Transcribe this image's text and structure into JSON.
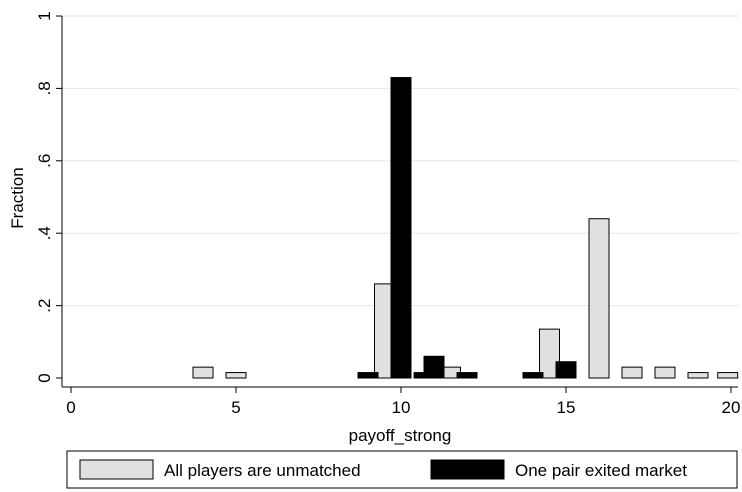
{
  "chart_data": {
    "type": "bar",
    "title": "",
    "xlabel": "payoff_strong",
    "ylabel": "Fraction",
    "xlim": [
      0,
      20
    ],
    "ylim": [
      0,
      1
    ],
    "xticks": [
      {
        "value": 0,
        "label": "0"
      },
      {
        "value": 5,
        "label": "5"
      },
      {
        "value": 10,
        "label": "10"
      },
      {
        "value": 15,
        "label": "15"
      },
      {
        "value": 20,
        "label": "20"
      }
    ],
    "yticks": [
      {
        "value": 0,
        "label": "0"
      },
      {
        "value": 0.2,
        "label": ".2"
      },
      {
        "value": 0.4,
        "label": ".4"
      },
      {
        "value": 0.6,
        "label": ".6"
      },
      {
        "value": 0.8,
        "label": ".8"
      },
      {
        "value": 1,
        "label": "1"
      }
    ],
    "grid": true,
    "legend_position": "bottom",
    "series": [
      {
        "name": "All players are unmatched",
        "color": "#e0e0e0",
        "points": [
          {
            "x": 4,
            "y": 0.03
          },
          {
            "x": 5,
            "y": 0.015
          },
          {
            "x": 9.5,
            "y": 0.26
          },
          {
            "x": 11.5,
            "y": 0.03
          },
          {
            "x": 14.5,
            "y": 0.135
          },
          {
            "x": 16,
            "y": 0.44
          },
          {
            "x": 17,
            "y": 0.03
          },
          {
            "x": 18,
            "y": 0.03
          },
          {
            "x": 19,
            "y": 0.015
          },
          {
            "x": 19.9,
            "y": 0.015
          }
        ]
      },
      {
        "name": "One pair exited market",
        "color": "#000000",
        "points": [
          {
            "x": 9,
            "y": 0.015
          },
          {
            "x": 10,
            "y": 0.83
          },
          {
            "x": 10.7,
            "y": 0.015
          },
          {
            "x": 11,
            "y": 0.06
          },
          {
            "x": 12,
            "y": 0.015
          },
          {
            "x": 14,
            "y": 0.015
          },
          {
            "x": 15,
            "y": 0.045
          }
        ]
      }
    ]
  }
}
